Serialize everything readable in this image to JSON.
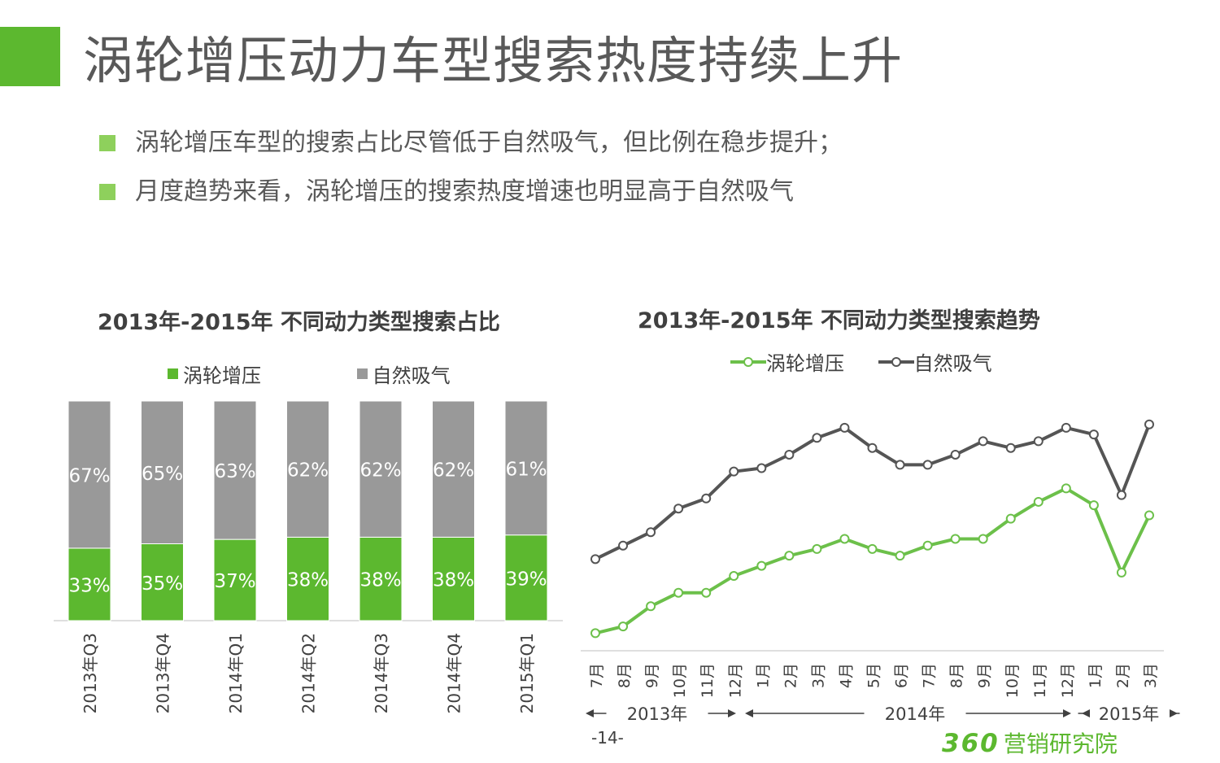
{
  "header": {
    "title": "涡轮增压动力车型搜索热度持续上升",
    "bullets": [
      "涡轮增压车型的搜索占比尽管低于自然吸气，但比例在稳步提升；",
      "月度趋势来看，涡轮增压的搜索热度增速也明显高于自然吸气"
    ]
  },
  "colors": {
    "accent": "#5cb82f",
    "bullet": "#8ed05c",
    "turbo": "#5cb82f",
    "natural": "#999999",
    "line_natural": "#555555",
    "line_turbo": "#6cc04a"
  },
  "chart_data": [
    {
      "type": "bar",
      "stacked": true,
      "title": "2013年-2015年 不同动力类型搜索占比",
      "legend_position": "top",
      "categories": [
        "2013年Q3",
        "2013年Q4",
        "2014年Q1",
        "2014年Q2",
        "2014年Q3",
        "2014年Q4",
        "2015年Q1"
      ],
      "series": [
        {
          "name": "涡轮增压",
          "values": [
            33,
            35,
            37,
            38,
            38,
            38,
            39
          ],
          "labels": [
            "33%",
            "35%",
            "37%",
            "38%",
            "38%",
            "38%",
            "39%"
          ]
        },
        {
          "name": "自然吸气",
          "values": [
            67,
            65,
            63,
            62,
            62,
            62,
            61
          ],
          "labels": [
            "67%",
            "65%",
            "63%",
            "62%",
            "62%",
            "62%",
            "61%"
          ]
        }
      ],
      "ylim": [
        0,
        100
      ]
    },
    {
      "type": "line",
      "title": "2013年-2015年 不同动力类型搜索趋势",
      "legend_position": "top",
      "categories": [
        "7月",
        "8月",
        "9月",
        "10月",
        "11月",
        "12月",
        "1月",
        "2月",
        "3月",
        "4月",
        "5月",
        "6月",
        "7月",
        "8月",
        "9月",
        "10月",
        "11月",
        "12月",
        "1月",
        "2月",
        "3月"
      ],
      "year_groups": [
        {
          "label": "2013年",
          "start": 0,
          "end": 5
        },
        {
          "label": "2014年",
          "start": 6,
          "end": 17
        },
        {
          "label": "2015年",
          "start": 18,
          "end": 20
        }
      ],
      "series": [
        {
          "name": "涡轮增压",
          "values": [
            15,
            17,
            23,
            27,
            27,
            32,
            35,
            38,
            40,
            43,
            40,
            38,
            41,
            43,
            43,
            49,
            54,
            58,
            53,
            33,
            50
          ]
        },
        {
          "name": "自然吸气",
          "values": [
            37,
            41,
            45,
            52,
            55,
            63,
            64,
            68,
            73,
            76,
            70,
            65,
            65,
            68,
            72,
            70,
            72,
            76,
            74,
            56,
            77
          ]
        }
      ],
      "ylim": [
        0,
        100
      ]
    }
  ],
  "footer": {
    "page": "-14-",
    "logo_number": "360",
    "logo_text": "营销研究院"
  }
}
